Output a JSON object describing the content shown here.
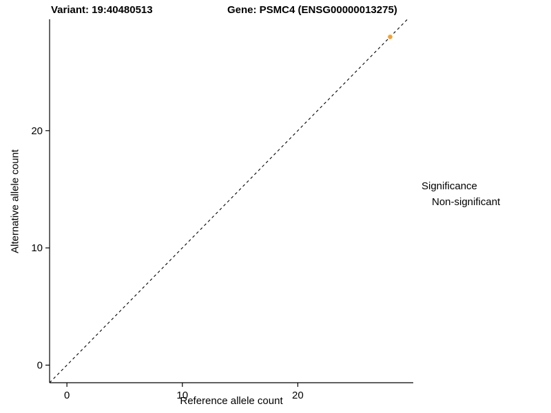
{
  "titles": {
    "left": "Variant: 19:40480513",
    "right": "Gene: PSMC4 (ENSG00000013275)"
  },
  "chart_data": {
    "type": "scatter",
    "title_left": "Variant: 19:40480513",
    "title_right": "Gene: PSMC4 (ENSG00000013275)",
    "xlabel": "Reference allele count",
    "ylabel": "Alternative allele count",
    "xlim": [
      -1.5,
      30
    ],
    "ylim": [
      -1.5,
      29.5
    ],
    "x_ticks": [
      0,
      10,
      20
    ],
    "y_ticks": [
      0,
      10,
      20
    ],
    "grid": false,
    "abline": {
      "slope": 1,
      "intercept": 0,
      "style": "dashed",
      "color": "#000000"
    },
    "series": [
      {
        "name": "Non-significant",
        "color": "#F8A02C",
        "points": [
          [
            28,
            28
          ]
        ]
      }
    ],
    "legend": {
      "position": "right",
      "title": "Significance",
      "entries": [
        {
          "label": "Non-significant",
          "color": "#F8A02C"
        }
      ]
    }
  }
}
